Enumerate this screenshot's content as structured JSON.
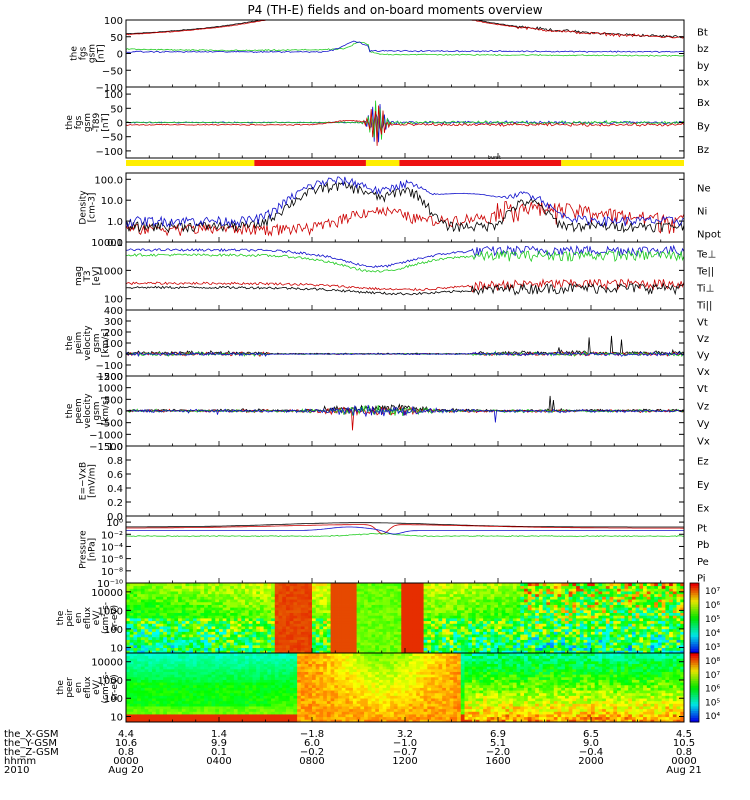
{
  "title": "P4 (TH-E) fields and on-board moments overview",
  "chart_data": [
    {
      "id": "fgs",
      "type": "line",
      "ylabel": [
        "the",
        "fgs",
        "gsm",
        "[nT]"
      ],
      "ylim": [
        -100,
        100
      ],
      "yticks": [
        "100",
        "50",
        "0",
        "−50",
        "−100"
      ],
      "ytick_values": [
        100,
        50,
        0,
        -50,
        -100
      ],
      "series": [
        {
          "name": "Bt",
          "color": "#000000"
        },
        {
          "name": "bz",
          "color": "#cc0000"
        },
        {
          "name": "by",
          "color": "#22cc22"
        },
        {
          "name": "bx",
          "color": "#1111cc"
        }
      ]
    },
    {
      "id": "fgs-dev",
      "type": "line",
      "ylabel": [
        "the",
        "fgs",
        "gsm",
        "-T89",
        "[nT]"
      ],
      "ylim": [
        -125,
        125
      ],
      "yticks": [
        "100",
        "50",
        "0",
        "−50",
        "−100"
      ],
      "ytick_values": [
        100,
        50,
        0,
        -50,
        -100
      ],
      "series": [
        {
          "name": "Bx",
          "color": "#1111cc"
        },
        {
          "name": "By",
          "color": "#22cc22"
        },
        {
          "name": "Bz",
          "color": "#cc0000"
        }
      ]
    },
    {
      "id": "mode-bar",
      "type": "bar",
      "label": "burst",
      "segments": [
        {
          "from": 0,
          "to": 0.23,
          "color": "#ffee00"
        },
        {
          "from": 0.23,
          "to": 0.43,
          "color": "#ee1111"
        },
        {
          "from": 0.43,
          "to": 0.49,
          "color": "#ffee00"
        },
        {
          "from": 0.49,
          "to": 0.78,
          "color": "#ee1111"
        },
        {
          "from": 0.78,
          "to": 1.0,
          "color": "#ffee00"
        }
      ]
    },
    {
      "id": "density",
      "type": "line",
      "scale": "log",
      "ylabel": [
        "Density",
        "[cm-3]"
      ],
      "ylim": [
        0.1,
        200
      ],
      "yticks": [
        "100.0",
        "10.0",
        "1.0",
        "0.1"
      ],
      "ytick_values": [
        100,
        10,
        1,
        0.1
      ],
      "series": [
        {
          "name": "Ne",
          "color": "#cc0000"
        },
        {
          "name": "Ni",
          "color": "#000000"
        },
        {
          "name": "Npot",
          "color": "#1111cc"
        }
      ]
    },
    {
      "id": "temperature",
      "type": "line",
      "scale": "log",
      "ylabel": [
        "mag",
        "T3",
        "[eV]"
      ],
      "ylim": [
        40,
        10000
      ],
      "yticks": [
        "10000",
        "1000",
        "100"
      ],
      "ytick_values": [
        10000,
        1000,
        100
      ],
      "series": [
        {
          "name": "Te⊥",
          "color": "#cc0000"
        },
        {
          "name": "Te||",
          "color": "#000000"
        },
        {
          "name": "Ti⊥",
          "color": "#1111cc"
        },
        {
          "name": "Ti||",
          "color": "#22cc22"
        }
      ]
    },
    {
      "id": "peim-velocity",
      "type": "line",
      "ylabel": [
        "the",
        "peim",
        "velocity",
        "gsm",
        "[km/s]"
      ],
      "ylim": [
        -200,
        400
      ],
      "yticks": [
        "400",
        "300",
        "200",
        "100",
        "0",
        "−100",
        "−200"
      ],
      "ytick_values": [
        400,
        300,
        200,
        100,
        0,
        -100,
        -200
      ],
      "series": [
        {
          "name": "Vt",
          "color": "#000000"
        },
        {
          "name": "Vz",
          "color": "#cc0000"
        },
        {
          "name": "Vy",
          "color": "#22cc22"
        },
        {
          "name": "Vx",
          "color": "#1111cc"
        }
      ]
    },
    {
      "id": "peem-velocity",
      "type": "line",
      "ylabel": [
        "the",
        "peem",
        "velocity",
        "gsm",
        "[km/s]"
      ],
      "ylim": [
        -1500,
        1500
      ],
      "yticks": [
        "1500",
        "1000",
        "500",
        "0",
        "−500",
        "−1000",
        "−1500"
      ],
      "ytick_values": [
        1500,
        1000,
        500,
        0,
        -500,
        -1000,
        -1500
      ],
      "series": [
        {
          "name": "Vt",
          "color": "#000000"
        },
        {
          "name": "Vz",
          "color": "#cc0000"
        },
        {
          "name": "Vy",
          "color": "#22cc22"
        },
        {
          "name": "Vx",
          "color": "#1111cc"
        }
      ]
    },
    {
      "id": "efield",
      "type": "line",
      "ylabel": [
        "E=−VxB",
        "[mV/m]"
      ],
      "ylim": [
        0,
        1
      ],
      "yticks": [
        "1.0",
        "0.8",
        "0.6",
        "0.4",
        "0.2",
        "0.0"
      ],
      "ytick_values": [
        1,
        0.8,
        0.6,
        0.4,
        0.2,
        0
      ],
      "series": [
        {
          "name": "Ez",
          "color": "#cc0000"
        },
        {
          "name": "Ey",
          "color": "#22cc22"
        },
        {
          "name": "Ex",
          "color": "#1111cc"
        }
      ]
    },
    {
      "id": "pressure",
      "type": "line",
      "scale": "log",
      "ylabel": [
        "Pressure",
        "[nPa]"
      ],
      "ylim": [
        1e-10,
        10
      ],
      "yticks": [
        "10⁰",
        "10⁻²",
        "10⁻⁴",
        "10⁻⁶",
        "10⁻⁸",
        "10⁻¹⁰"
      ],
      "ytick_values": [
        1,
        0.01,
        0.0001,
        1e-06,
        1e-08,
        1e-10
      ],
      "series": [
        {
          "name": "Pt",
          "color": "#000000"
        },
        {
          "name": "Pb",
          "color": "#cc0000"
        },
        {
          "name": "Pe",
          "color": "#22cc22"
        },
        {
          "name": "Pi",
          "color": "#1111cc"
        }
      ]
    },
    {
      "id": "peir-spec",
      "type": "heatmap",
      "ylabel": [
        "the",
        "peir",
        "en",
        "eflux",
        "eV/",
        "(cm²-s-",
        "sr-eV)"
      ],
      "ylim": [
        5,
        30000
      ],
      "yticks": [
        "10000",
        "1000",
        "100",
        "10"
      ],
      "ytick_values": [
        10000,
        1000,
        100,
        10
      ],
      "colorbar": {
        "labels": [
          "10⁷",
          "10⁶",
          "10⁵",
          "10⁴",
          "10³"
        ],
        "values": [
          7,
          6,
          5,
          4,
          3
        ]
      }
    },
    {
      "id": "peer-spec",
      "type": "heatmap",
      "ylabel": [
        "the",
        "peer",
        "en",
        "eflux",
        "eV/",
        "(cm²-s-",
        "sr-eV)"
      ],
      "ylim": [
        5,
        30000
      ],
      "yticks": [
        "10000",
        "1000",
        "100",
        "10"
      ],
      "ytick_values": [
        10000,
        1000,
        100,
        10
      ],
      "colorbar": {
        "labels": [
          "10⁸",
          "10⁷",
          "10⁶",
          "10⁵",
          "10⁴"
        ],
        "values": [
          8,
          7,
          6,
          5,
          4
        ]
      }
    }
  ],
  "xaxis": {
    "row_labels": [
      "the_X-GSM",
      "the_Y-GSM",
      "the_Z-GSM",
      "hhmm",
      "2010"
    ],
    "ticks": [
      {
        "x": "4.4",
        "y": "10.6",
        "z": "0.8",
        "hhmm": "0000",
        "date": "Aug 20"
      },
      {
        "x": "1.4",
        "y": "9.9",
        "z": "0.1",
        "hhmm": "0400",
        "date": ""
      },
      {
        "x": "−1.8",
        "y": "6.0",
        "z": "−0.2",
        "hhmm": "0800",
        "date": ""
      },
      {
        "x": "3.2",
        "y": "−1.0",
        "z": "−0.7",
        "hhmm": "1200",
        "date": ""
      },
      {
        "x": "6.9",
        "y": "5.1",
        "z": "−2.0",
        "hhmm": "1600",
        "date": ""
      },
      {
        "x": "6.5",
        "y": "9.0",
        "z": "−0.4",
        "hhmm": "2000",
        "date": ""
      },
      {
        "x": "4.5",
        "y": "10.5",
        "z": "0.8",
        "hhmm": "0000",
        "date": "Aug 21"
      }
    ]
  }
}
